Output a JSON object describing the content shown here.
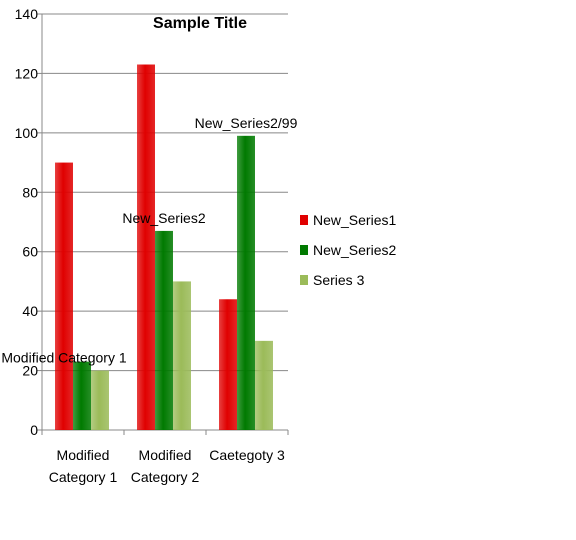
{
  "colors": {
    "series1": "#e00000",
    "series2": "#007a00",
    "series3": "#9bbb59",
    "gridline": "#888888",
    "axis": "#888888"
  },
  "chart_data": {
    "type": "bar",
    "title": "Sample Title",
    "xlabel": "",
    "ylabel": "",
    "ylim": [
      0,
      140
    ],
    "yticks": [
      0,
      20,
      40,
      60,
      80,
      100,
      120,
      140
    ],
    "grid": true,
    "legend_position": "right",
    "categories": [
      [
        "Modified",
        "Category 1"
      ],
      [
        "Modified",
        "Category 2"
      ],
      [
        "Caetegoty 3"
      ]
    ],
    "series": [
      {
        "name": "New_Series1",
        "values": [
          90,
          123,
          44
        ]
      },
      {
        "name": "New_Series2",
        "values": [
          23,
          67,
          99
        ]
      },
      {
        "name": "Series 3",
        "values": [
          20,
          50,
          30
        ]
      }
    ],
    "annotations": [
      {
        "text": "Modified Category 1",
        "category": 0,
        "series": 0,
        "value": 20
      },
      {
        "text": "New_Series2",
        "category": 1,
        "series": 1,
        "value": 67
      },
      {
        "text": "New_Series2/99",
        "category": 2,
        "series": 1,
        "value": 99
      }
    ]
  }
}
